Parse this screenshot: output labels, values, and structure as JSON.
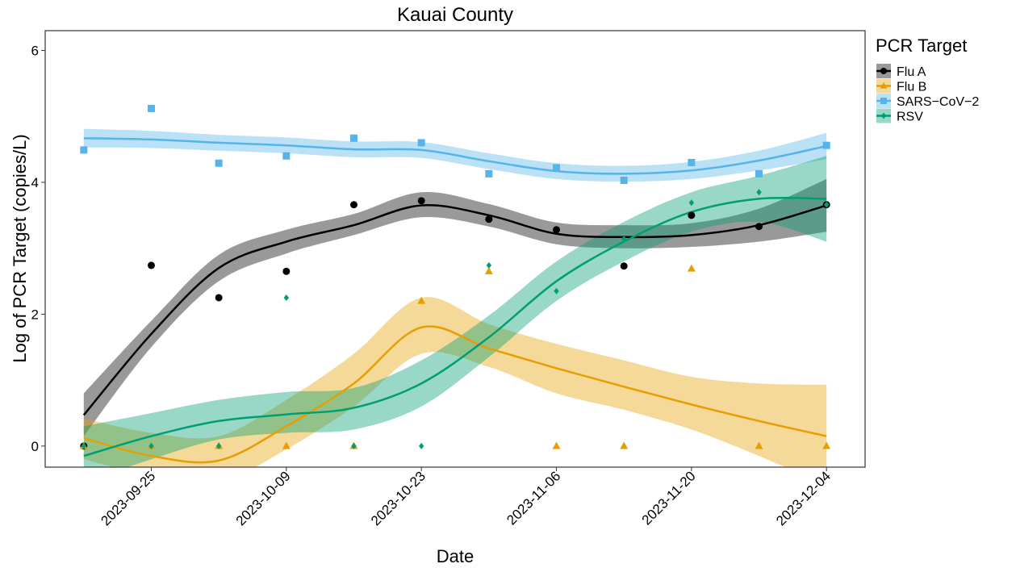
{
  "chart_data": {
    "type": "scatter-smooth",
    "title": "Kauai County",
    "x_label": "Date",
    "y_label": "Log of PCR Target (copies/L)",
    "legend_title": "PCR Target",
    "x": [
      "2023-09-18",
      "2023-09-25",
      "2023-10-02",
      "2023-10-09",
      "2023-10-16",
      "2023-10-23",
      "2023-10-30",
      "2023-11-06",
      "2023-11-13",
      "2023-11-20",
      "2023-11-27",
      "2023-12-04"
    ],
    "xlim": [
      "2023-09-14",
      "2023-12-08"
    ],
    "xticks": [
      "2023-09-25",
      "2023-10-09",
      "2023-10-23",
      "2023-11-06",
      "2023-11-20",
      "2023-12-04"
    ],
    "ylim": [
      -0.32,
      6.3
    ],
    "yticks": [
      0,
      2,
      4,
      6
    ],
    "grid": false,
    "series": [
      {
        "name": "Flu A",
        "color": "#000000",
        "shape": "circle",
        "values": [
          0,
          2.74,
          2.25,
          2.65,
          3.66,
          3.72,
          3.44,
          3.28,
          2.73,
          3.5,
          3.33,
          3.66
        ],
        "fit": [
          0.47,
          1.7,
          2.7,
          3.1,
          3.35,
          3.65,
          3.5,
          3.22,
          3.17,
          3.2,
          3.35,
          3.65
        ],
        "fit_lower": [
          0.15,
          1.5,
          2.5,
          2.92,
          3.2,
          3.47,
          3.33,
          3.06,
          3.0,
          3.02,
          3.1,
          3.25
        ],
        "fit_upper": [
          0.8,
          1.9,
          2.9,
          3.28,
          3.52,
          3.85,
          3.67,
          3.39,
          3.35,
          3.38,
          3.6,
          4.05
        ]
      },
      {
        "name": "Flu B",
        "color": "#E69F00",
        "shape": "triangle",
        "values": [
          0,
          0,
          0,
          0,
          0,
          2.2,
          2.65,
          0,
          0,
          2.69,
          0,
          0
        ],
        "fit": [
          0.12,
          -0.15,
          -0.22,
          0.3,
          0.95,
          1.8,
          1.48,
          1.18,
          0.9,
          0.63,
          0.38,
          0.15
        ],
        "fit_lower": [
          -0.2,
          -0.45,
          -0.55,
          -0.05,
          0.6,
          1.4,
          1.2,
          0.8,
          0.55,
          0.25,
          -0.15,
          -0.6
        ],
        "fit_upper": [
          0.42,
          0.2,
          0.15,
          0.7,
          1.4,
          2.25,
          1.85,
          1.55,
          1.3,
          1.05,
          0.95,
          0.93
        ]
      },
      {
        "name": "SARS−CoV−2",
        "color": "#56B4E9",
        "shape": "square",
        "values": [
          4.49,
          5.12,
          4.29,
          4.4,
          4.67,
          4.6,
          4.13,
          4.22,
          4.03,
          4.3,
          4.13,
          4.56
        ],
        "fit": [
          4.67,
          4.65,
          4.6,
          4.56,
          4.5,
          4.49,
          4.32,
          4.17,
          4.13,
          4.18,
          4.33,
          4.55
        ],
        "fit_lower": [
          4.53,
          4.52,
          4.48,
          4.44,
          4.38,
          4.37,
          4.2,
          4.05,
          4.01,
          4.05,
          4.18,
          4.35
        ],
        "fit_upper": [
          4.81,
          4.78,
          4.72,
          4.68,
          4.62,
          4.61,
          4.44,
          4.29,
          4.25,
          4.31,
          4.48,
          4.75
        ]
      },
      {
        "name": "RSV",
        "color": "#009E73",
        "shape": "diamond",
        "values": [
          0,
          0,
          0,
          2.25,
          0,
          0,
          2.74,
          2.35,
          3.14,
          3.69,
          3.85,
          3.66
        ],
        "fit": [
          -0.15,
          0.15,
          0.38,
          0.48,
          0.58,
          0.95,
          1.65,
          2.5,
          3.1,
          3.55,
          3.75,
          3.75
        ],
        "fit_lower": [
          -0.55,
          -0.2,
          0.1,
          0.2,
          0.25,
          0.6,
          1.35,
          2.2,
          2.8,
          3.25,
          3.4,
          3.1
        ],
        "fit_upper": [
          0.3,
          0.5,
          0.7,
          0.82,
          0.88,
          1.3,
          1.98,
          2.8,
          3.4,
          3.85,
          4.1,
          4.4
        ]
      }
    ]
  }
}
